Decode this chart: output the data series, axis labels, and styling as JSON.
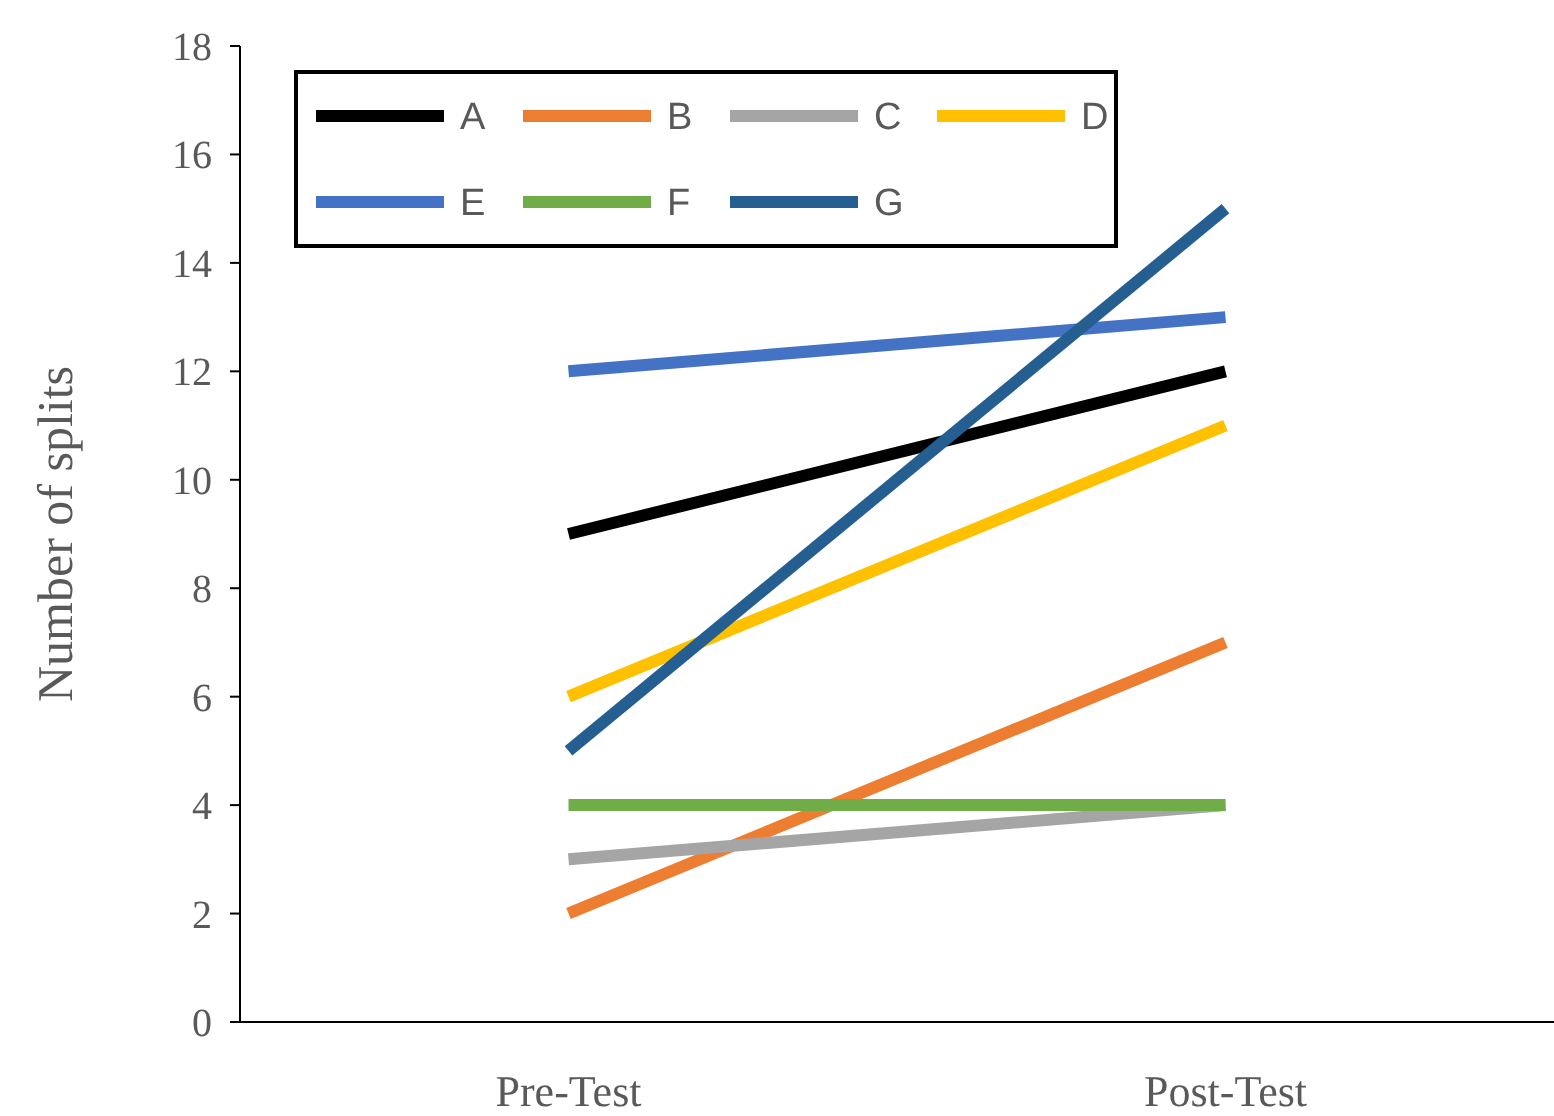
{
  "chart_data": {
    "type": "line",
    "ylabel": "Number of splits",
    "categories": [
      "Pre-Test",
      "Post-Test"
    ],
    "series": [
      {
        "name": "A",
        "color": "#000000",
        "values": [
          9,
          12
        ]
      },
      {
        "name": "B",
        "color": "#ed7d31",
        "values": [
          2,
          7
        ]
      },
      {
        "name": "C",
        "color": "#a5a5a5",
        "values": [
          3,
          4
        ]
      },
      {
        "name": "D",
        "color": "#ffc000",
        "values": [
          6,
          11
        ]
      },
      {
        "name": "E",
        "color": "#4472c4",
        "values": [
          12,
          13
        ]
      },
      {
        "name": "F",
        "color": "#70ad47",
        "values": [
          4,
          4
        ]
      },
      {
        "name": "G",
        "color": "#255e91",
        "values": [
          5,
          15
        ]
      }
    ],
    "ylim": [
      0,
      18
    ],
    "yticks": [
      0,
      2,
      4,
      6,
      8,
      10,
      12,
      14,
      16,
      18
    ],
    "grid": false,
    "legend": "top left",
    "marker": "none",
    "line_style": "solid"
  }
}
